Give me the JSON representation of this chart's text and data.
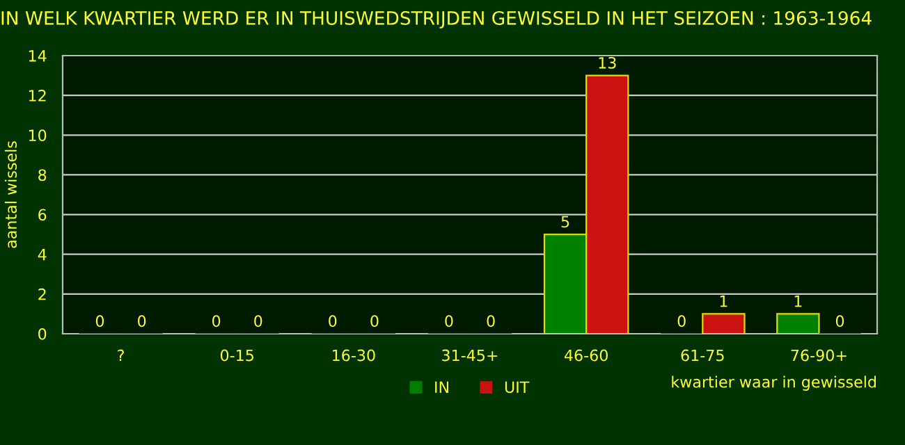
{
  "chart_data": {
    "type": "bar",
    "title": "IN WELK KWARTIER WERD ER IN THUISWEDSTRIJDEN GEWISSELD IN HET SEIZOEN : 1963-1964",
    "xlabel": "kwartier waar in gewisseld",
    "ylabel": "aantal wissels",
    "categories": [
      "?",
      "0-15",
      "16-30",
      "31-45+",
      "46-60",
      "61-75",
      "76-90+"
    ],
    "series": [
      {
        "name": "IN",
        "color": "#008000",
        "values": [
          0,
          0,
          0,
          0,
          5,
          0,
          1
        ]
      },
      {
        "name": "UIT",
        "color": "#cc1111",
        "values": [
          0,
          0,
          0,
          0,
          13,
          1,
          0
        ]
      }
    ],
    "ylim": [
      0,
      14
    ],
    "yticks": [
      0,
      2,
      4,
      6,
      8,
      10,
      12,
      14
    ],
    "grid": "y",
    "legend": "bottom",
    "data_labels": true
  }
}
